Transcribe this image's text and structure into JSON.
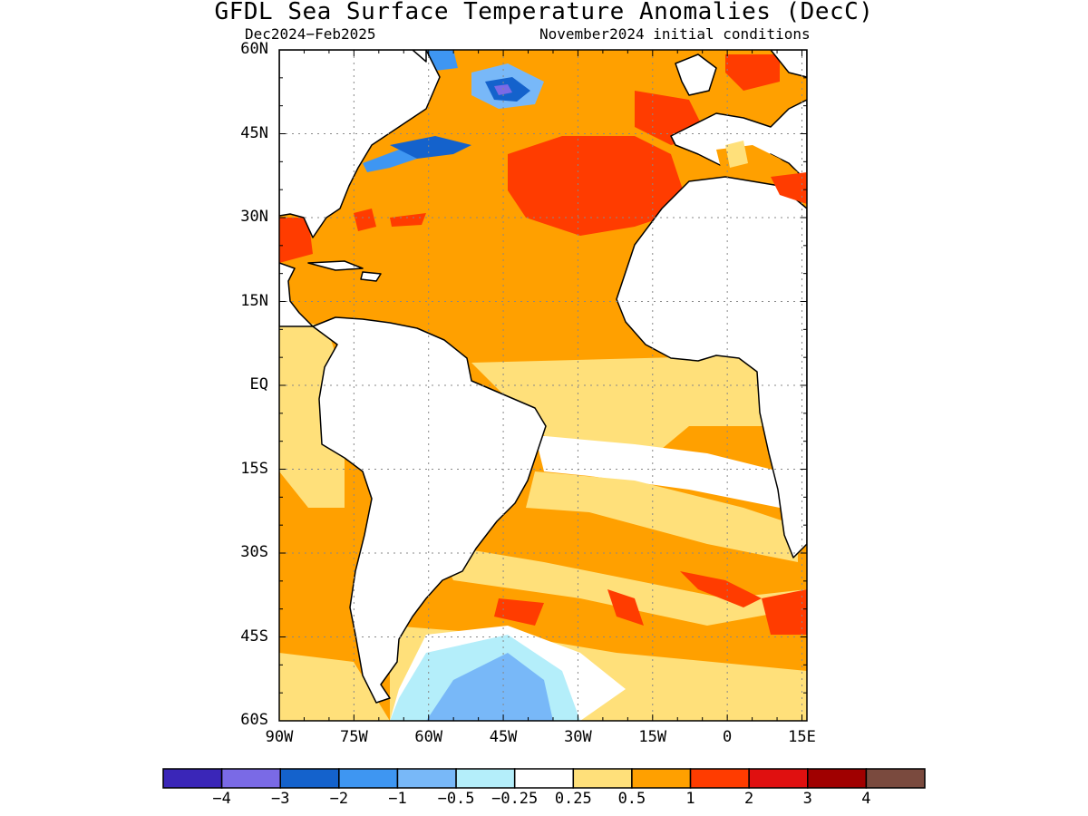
{
  "map": {
    "title": "GFDL Sea Surface Temperature Anomalies (DecC)",
    "season": "Dec2024−Feb2025",
    "init_conditions": "November2024 initial conditions",
    "lat_labels": [
      "60N",
      "45N",
      "30N",
      "15N",
      "EQ",
      "15S",
      "30S",
      "45S",
      "60S"
    ],
    "lon_labels": [
      "90W",
      "75W",
      "60W",
      "45W",
      "30W",
      "15W",
      "0",
      "15E"
    ],
    "lat_values": [
      60,
      45,
      30,
      15,
      0,
      -15,
      -30,
      -45,
      -60
    ],
    "lon_values": [
      -90,
      -75,
      -60,
      -45,
      -30,
      -15,
      0,
      15
    ],
    "extent": {
      "lon_min": -90,
      "lon_max": 16,
      "lat_min": -60,
      "lat_max": 60
    },
    "grid": true
  },
  "colorbar": {
    "colors": [
      "#3a26b8",
      "#7a6ae6",
      "#1462cc",
      "#3e96f2",
      "#78b8f8",
      "#b4eefa",
      "#ffffff",
      "#ffe07a",
      "#ffa000",
      "#ff3c00",
      "#e01010",
      "#a00000",
      "#7a4a3e"
    ],
    "labels": [
      "−4",
      "−3",
      "−2",
      "−1",
      "−0.5",
      "−0.25",
      "0.25",
      "0.5",
      "1",
      "2",
      "3",
      "4"
    ]
  },
  "colors": {
    "ocean_base": "#ffa000",
    "land": "#ffffff",
    "coast": "#000000"
  }
}
